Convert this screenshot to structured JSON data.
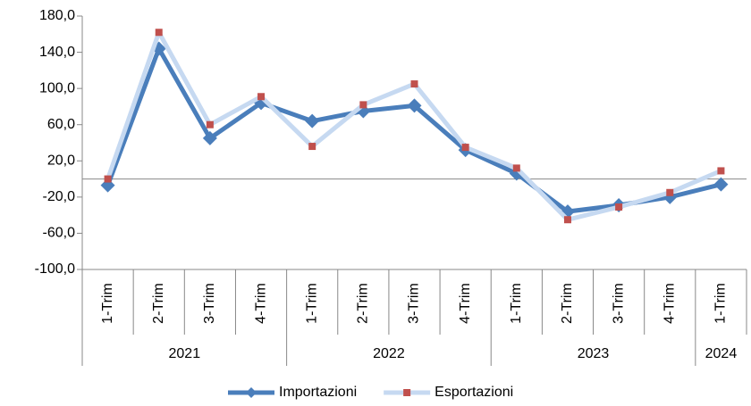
{
  "chart_data": {
    "type": "line",
    "categories": [
      "1-Trim",
      "2-Trim",
      "3-Trim",
      "4-Trim",
      "1-Trim",
      "2-Trim",
      "3-Trim",
      "4-Trim",
      "1-Trim",
      "2-Trim",
      "3-Trim",
      "4-Trim",
      "1-Trim"
    ],
    "year_groups": [
      {
        "label": "2021",
        "span": 4
      },
      {
        "label": "2022",
        "span": 4
      },
      {
        "label": "2023",
        "span": 4
      },
      {
        "label": "2024",
        "span": 1
      }
    ],
    "series": [
      {
        "name": "Importazioni",
        "color": "#4a7ebb",
        "marker": "diamond",
        "values": [
          -7,
          144,
          45,
          84,
          64,
          75,
          81,
          32,
          6,
          -36,
          -29,
          -20,
          -6
        ]
      },
      {
        "name": "Esportazioni",
        "color": "#c6d9f1",
        "marker_color": "#c0504d",
        "marker": "square",
        "values": [
          0,
          162,
          60,
          91,
          36,
          82,
          105,
          35,
          12,
          -45,
          -31,
          -15,
          9
        ]
      }
    ],
    "ylim": [
      -100,
      180
    ],
    "yticks": [
      {
        "value": 180,
        "label": "180,0"
      },
      {
        "value": 140,
        "label": "140,0"
      },
      {
        "value": 100,
        "label": "100,0"
      },
      {
        "value": 60,
        "label": "60,0"
      },
      {
        "value": 20,
        "label": "20,0"
      },
      {
        "value": -20,
        "label": "-20,0"
      },
      {
        "value": -60,
        "label": "-60,0"
      },
      {
        "value": -100,
        "label": "-100,0"
      }
    ],
    "legend": "bottom"
  }
}
